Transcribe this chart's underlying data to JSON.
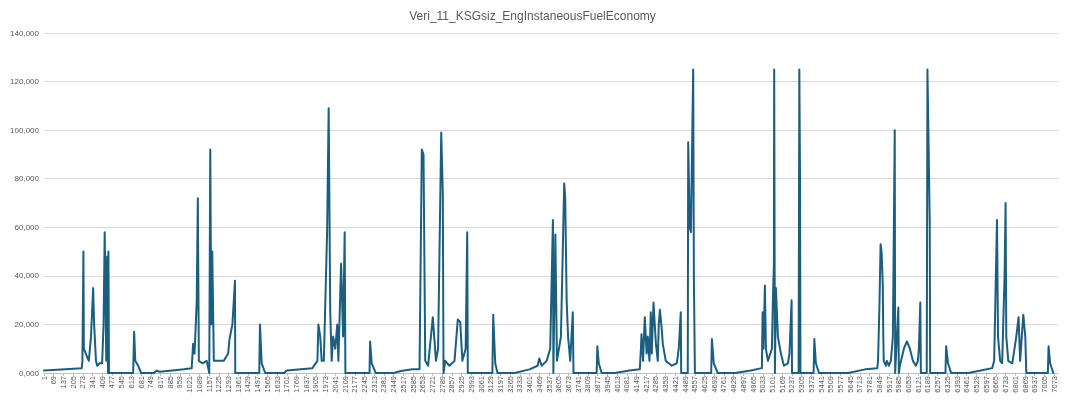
{
  "chart_data": {
    "type": "line",
    "title": "Veri_11_KSGsiz_EngInstaneousFuelEconomy",
    "color": "#1b5f80",
    "marker": "none",
    "line_style": "solid",
    "grid": "y",
    "xlim": [
      1,
      7100
    ],
    "xticks": [
      1,
      69,
      137,
      205,
      273,
      341,
      409,
      477,
      545,
      613,
      681,
      749,
      817,
      885,
      953,
      1021,
      1089,
      1157,
      1225,
      1293,
      1361,
      1429,
      1497,
      1565,
      1633,
      1701,
      1769,
      1837,
      1905,
      1973,
      2041,
      2109,
      2177,
      2245,
      2313,
      2381,
      2449,
      2517,
      2585,
      2653,
      2721,
      2789,
      2857,
      2925,
      2993,
      3061,
      3129,
      3197,
      3265,
      3333,
      3401,
      3469,
      3537,
      3605,
      3673,
      3741,
      3809,
      3877,
      3945,
      4013,
      4081,
      4149,
      4217,
      4285,
      4353,
      4421,
      4489,
      4557,
      4625,
      4693,
      4761,
      4829,
      4897,
      4965,
      5033,
      5101,
      5169,
      5237,
      5305,
      5373,
      5441,
      5509,
      5577,
      5645,
      5713,
      5781,
      5849,
      5917,
      5985,
      6053,
      6121,
      6189,
      6257,
      6325,
      6393,
      6461,
      6529,
      6597,
      6665,
      6733,
      6801,
      6869,
      6937,
      7005,
      7073
    ],
    "ylim": [
      0,
      140000
    ],
    "yticks": [
      {
        "value": 0,
        "label": "0,000"
      },
      {
        "value": 20000,
        "label": "20,000"
      },
      {
        "value": 40000,
        "label": "40,000"
      },
      {
        "value": 60000,
        "label": "60,000"
      },
      {
        "value": 80000,
        "label": "80,000"
      },
      {
        "value": 100000,
        "label": "100,000"
      },
      {
        "value": 120000,
        "label": "120,000"
      },
      {
        "value": 140000,
        "label": "140,000"
      }
    ],
    "x": [
      1,
      150,
      265,
      270,
      277,
      280,
      300,
      315,
      330,
      345,
      352,
      365,
      373,
      390,
      408,
      418,
      426,
      431,
      437,
      443,
      449,
      452,
      456,
      625,
      632,
      640,
      660,
      681,
      772,
      790,
      810,
      900,
      980,
      1035,
      1045,
      1055,
      1070,
      1078,
      1085,
      1110,
      1140,
      1158,
      1165,
      1172,
      1179,
      1190,
      1225,
      1260,
      1290,
      1300,
      1320,
      1338,
      1340,
      1508,
      1513,
      1525,
      1550,
      1683,
      1700,
      1800,
      1880,
      1915,
      1922,
      1935,
      1945,
      1960,
      1983,
      1994,
      2005,
      2015,
      2025,
      2040,
      2054,
      2062,
      2081,
      2095,
      2106,
      2111,
      2280,
      2284,
      2295,
      2324,
      2448,
      2500,
      2580,
      2630,
      2646,
      2658,
      2670,
      2690,
      2723,
      2745,
      2760,
      2782,
      2793,
      2798,
      2810,
      2840,
      2875,
      2898,
      2915,
      2930,
      2953,
      2964,
      2968,
      3140,
      3146,
      3160,
      3176,
      3296,
      3400,
      3457,
      3468,
      3485,
      3520,
      3545,
      3564,
      3567,
      3581,
      3592,
      3620,
      3643,
      3650,
      3660,
      3670,
      3685,
      3703,
      3708,
      3870,
      3875,
      3885,
      3905,
      3996,
      4100,
      4172,
      4180,
      4184,
      4195,
      4207,
      4220,
      4228,
      4240,
      4249,
      4256,
      4268,
      4285,
      4298,
      4305,
      4313,
      4326,
      4333,
      4354,
      4375,
      4396,
      4431,
      4445,
      4459,
      4462,
      4508,
      4511,
      4522,
      4530,
      4546,
      4551,
      4558,
      4672,
      4677,
      4690,
      4718,
      4838,
      4950,
      5027,
      5032,
      5038,
      5048,
      5055,
      5069,
      5097,
      5104,
      5111,
      5113,
      5118,
      5125,
      5139,
      5160,
      5181,
      5209,
      5220,
      5235,
      5238,
      5284,
      5289,
      5294,
      5297,
      5389,
      5394,
      5405,
      5427,
      5630,
      5750,
      5835,
      5840,
      5850,
      5858,
      5865,
      5873,
      5877,
      5880,
      5895,
      5902,
      5916,
      5930,
      5944,
      5957,
      5960,
      5982,
      5986,
      5993,
      6021,
      6042,
      6063,
      6084,
      6105,
      6119,
      6126,
      6136,
      6140,
      6181,
      6186,
      6202,
      6205,
      6312,
      6317,
      6330,
      6352,
      6471,
      6560,
      6639,
      6653,
      6673,
      6680,
      6695,
      6709,
      6726,
      6733,
      6738,
      6752,
      6780,
      6808,
      6824,
      6835,
      6857,
      6871,
      6878,
      7029,
      7034,
      7045,
      7067
    ],
    "values": [
      1000,
      1500,
      2000,
      5000,
      50000,
      10000,
      7000,
      5000,
      15000,
      35000,
      20000,
      5000,
      3000,
      4000,
      4000,
      20000,
      58000,
      35000,
      5000,
      48000,
      0,
      50000,
      0,
      0,
      17000,
      5000,
      3000,
      0,
      0,
      1000,
      500,
      1000,
      1500,
      2000,
      12000,
      8000,
      29000,
      72000,
      5000,
      4000,
      5000,
      0,
      92000,
      20000,
      50000,
      5000,
      5000,
      5000,
      8000,
      14000,
      20000,
      38000,
      0,
      0,
      20000,
      4000,
      0,
      0,
      1000,
      1500,
      2000,
      5000,
      20000,
      15000,
      5000,
      5000,
      58000,
      109000,
      25000,
      5000,
      15000,
      10000,
      20000,
      5000,
      45000,
      15000,
      58000,
      0,
      0,
      13000,
      4000,
      0,
      0,
      800,
      1500,
      1500,
      92000,
      90000,
      5000,
      3000,
      23000,
      5000,
      10000,
      99000,
      74000,
      0,
      5000,
      3000,
      5000,
      22000,
      21000,
      5000,
      10000,
      58000,
      0,
      0,
      24000,
      4000,
      0,
      0,
      1500,
      3000,
      6000,
      3000,
      5000,
      10000,
      63000,
      0,
      57000,
      5000,
      15000,
      78000,
      72000,
      30000,
      15000,
      5000,
      25000,
      0,
      0,
      11000,
      4000,
      0,
      0,
      1000,
      1500,
      10000,
      16000,
      5000,
      23000,
      8000,
      15000,
      5000,
      25000,
      8000,
      29000,
      12000,
      5000,
      20000,
      26000,
      18000,
      12000,
      5000,
      4000,
      3000,
      4000,
      10000,
      25000,
      0,
      0,
      95000,
      60000,
      58000,
      125000,
      38000,
      0,
      0,
      14000,
      4000,
      0,
      0,
      1000,
      2000,
      25000,
      10000,
      36000,
      10000,
      5000,
      10000,
      30000,
      45000,
      125000,
      0,
      35000,
      15000,
      8000,
      3000,
      4000,
      8000,
      30000,
      0,
      0,
      125000,
      80000,
      0,
      0,
      14000,
      4000,
      0,
      0,
      1500,
      2000,
      5000,
      28000,
      53000,
      50000,
      37000,
      15000,
      5000,
      3000,
      5000,
      3000,
      5000,
      15000,
      100000,
      0,
      27000,
      0,
      3000,
      10000,
      13000,
      10000,
      5000,
      3000,
      5000,
      10000,
      29000,
      0,
      0,
      125000,
      62000,
      0,
      0,
      11000,
      4000,
      0,
      0,
      1000,
      2000,
      5000,
      63000,
      15000,
      5000,
      4000,
      40000,
      70000,
      15000,
      5000,
      4000,
      15000,
      23000,
      5000,
      24000,
      15000,
      0,
      0,
      11000,
      4000,
      0
    ]
  }
}
